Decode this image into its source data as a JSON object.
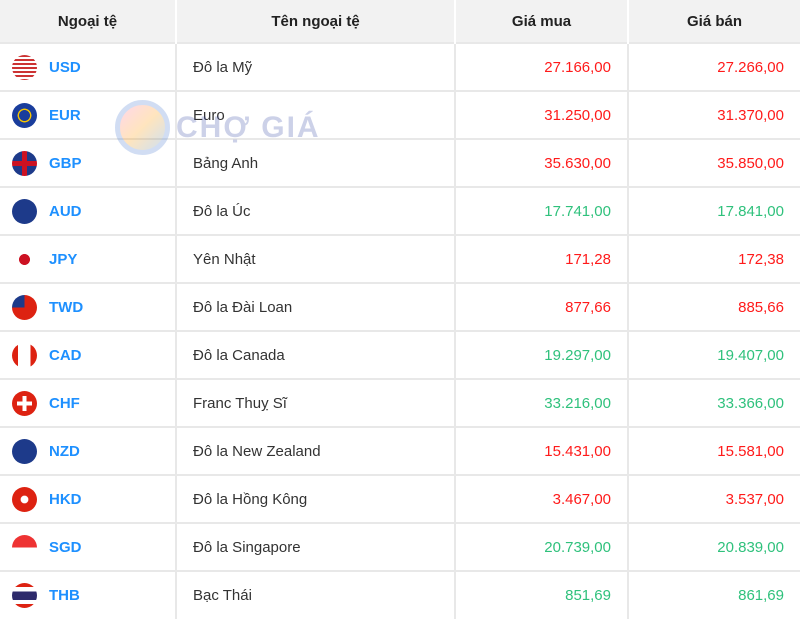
{
  "headers": [
    "Ngoại tệ",
    "Tên ngoại tệ",
    "Giá mua",
    "Giá bán"
  ],
  "watermark": "CHỢ GIÁ",
  "colors": {
    "up": "#2fc17c",
    "down": "#ff1a1a",
    "code": "#1e90ff"
  },
  "rows": [
    {
      "code": "USD",
      "name": "Đô la Mỹ",
      "buy": "27.166,00",
      "sell": "27.266,00",
      "trend": "down",
      "flag": "usa-flag-icon",
      "bg": "repeating-linear-gradient(#c33 0 2px,#fff 2px 4px)"
    },
    {
      "code": "EUR",
      "name": "Euro",
      "buy": "31.250,00",
      "sell": "31.370,00",
      "trend": "down",
      "flag": "eu-flag-icon",
      "bg": "radial-gradient(circle,#1a3d9c 30%,#f5c400 32%,#f5c400 38%,#1a3d9c 40%)"
    },
    {
      "code": "GBP",
      "name": "Bảng Anh",
      "buy": "35.630,00",
      "sell": "35.850,00",
      "trend": "down",
      "flag": "uk-flag-icon",
      "bg": "linear-gradient(#0000 40%,#c12 40% 60%,#0000 60%),linear-gradient(90deg,#0000 40%,#c12 40% 60%,#0000 60%),#1d3a8a"
    },
    {
      "code": "AUD",
      "name": "Đô la Úc",
      "buy": "17.741,00",
      "sell": "17.841,00",
      "trend": "up",
      "flag": "australia-flag-icon",
      "bg": "#1d3a8a"
    },
    {
      "code": "JPY",
      "name": "Yên Nhật",
      "buy": "171,28",
      "sell": "172,38",
      "trend": "down",
      "flag": "japan-flag-icon",
      "bg": "radial-gradient(circle,#c12 30%,#fff 32%)"
    },
    {
      "code": "TWD",
      "name": "Đô la Đài Loan",
      "buy": "877,66",
      "sell": "885,66",
      "trend": "down",
      "flag": "taiwan-flag-icon",
      "bg": "linear-gradient(#1d3a8a 0 50%,#0000 50%) 0 0/50% 100% no-repeat,#d21"
    },
    {
      "code": "CAD",
      "name": "Đô la Canada",
      "buy": "19.297,00",
      "sell": "19.407,00",
      "trend": "up",
      "flag": "canada-flag-icon",
      "bg": "linear-gradient(90deg,#d21 25%,#fff 25% 75%,#d21 75%)"
    },
    {
      "code": "CHF",
      "name": "Franc Thuỵ Sĩ",
      "buy": "33.216,00",
      "sell": "33.366,00",
      "trend": "up",
      "flag": "swiss-flag-icon",
      "bg": "linear-gradient(#0000 42%,#fff 42% 58%,#0000 58%) center/60% 100% no-repeat,linear-gradient(90deg,#0000 42%,#fff 42% 58%,#0000 58%) center/100% 60% no-repeat,#d21"
    },
    {
      "code": "NZD",
      "name": "Đô la New Zealand",
      "buy": "15.431,00",
      "sell": "15.581,00",
      "trend": "down",
      "flag": "new-zealand-flag-icon",
      "bg": "#1d3a8a"
    },
    {
      "code": "HKD",
      "name": "Đô la Hồng Kông",
      "buy": "3.467,00",
      "sell": "3.537,00",
      "trend": "down",
      "flag": "hong-kong-flag-icon",
      "bg": "radial-gradient(circle,#fff 20%,#d21 24%)"
    },
    {
      "code": "SGD",
      "name": "Đô la Singapore",
      "buy": "20.739,00",
      "sell": "20.839,00",
      "trend": "up",
      "flag": "singapore-flag-icon",
      "bg": "linear-gradient(#e33 50%,#fff 50%)"
    },
    {
      "code": "THB",
      "name": "Bạc Thái",
      "buy": "851,69",
      "sell": "861,69",
      "trend": "up",
      "flag": "thailand-flag-icon",
      "bg": "linear-gradient(#d21 16%,#fff 16% 33%,#2d2a6b 33% 67%,#fff 67% 84%,#d21 84%)"
    }
  ]
}
